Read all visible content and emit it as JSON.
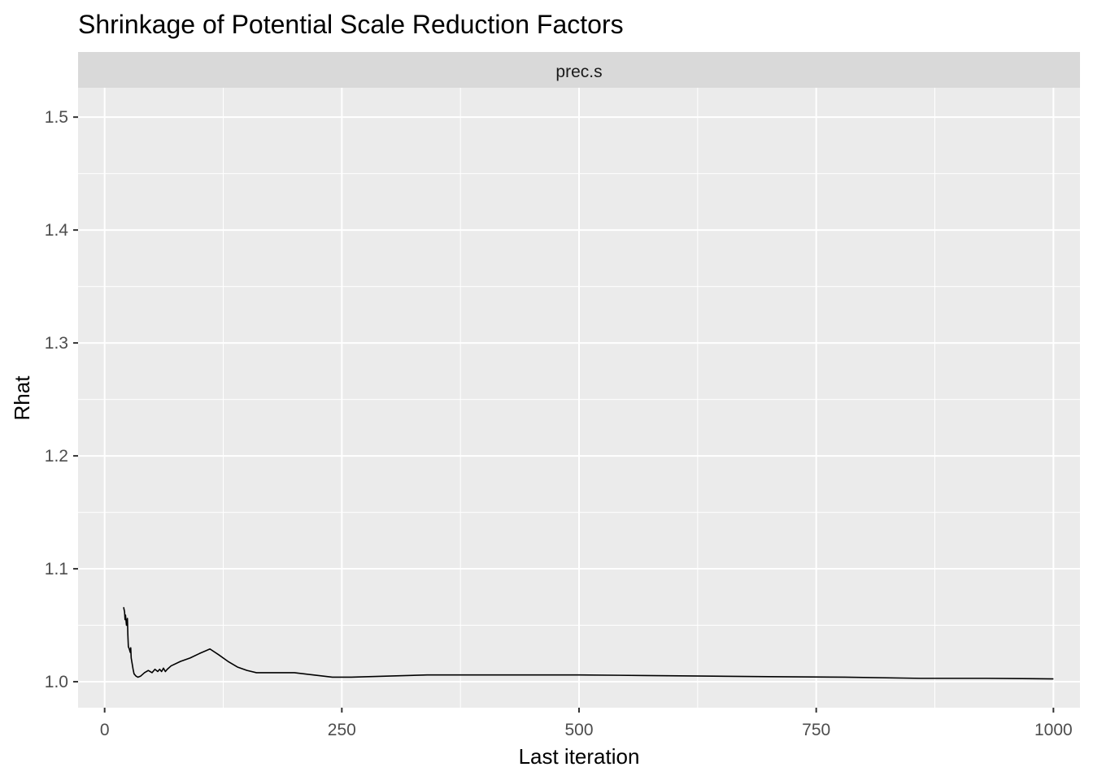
{
  "chart_data": {
    "type": "line",
    "title": "Shrinkage of Potential Scale Reduction Factors",
    "facet_label": "prec.s",
    "xlabel": "Last iteration",
    "ylabel": "Rhat",
    "xlim": [
      -28,
      1028
    ],
    "ylim": [
      0.977,
      1.526
    ],
    "x_ticks": [
      0,
      250,
      500,
      750,
      1000
    ],
    "x_tick_labels": [
      "0",
      "250",
      "500",
      "750",
      "1000"
    ],
    "y_ticks": [
      1.0,
      1.1,
      1.2,
      1.3,
      1.4,
      1.5
    ],
    "y_tick_labels": [
      "1.0",
      "1.1",
      "1.2",
      "1.3",
      "1.4",
      "1.5"
    ],
    "grid": true,
    "series": [
      {
        "color": "#000000",
        "x": [
          20,
          21,
          21.5,
          22,
          23,
          24,
          24.5,
          25,
          26,
          27,
          27.5,
          28,
          29,
          30,
          31,
          33,
          35,
          38,
          42,
          46,
          50,
          53,
          56,
          58,
          60,
          62,
          64,
          66,
          70,
          80,
          90,
          100,
          111,
          120,
          130,
          140,
          150,
          160,
          170,
          180,
          200,
          220,
          240,
          260,
          300,
          340,
          400,
          450,
          500,
          570,
          630,
          700,
          780,
          860,
          930,
          1000
        ],
        "values": [
          1.066,
          1.062,
          1.055,
          1.059,
          1.05,
          1.056,
          1.041,
          1.031,
          1.029,
          1.026,
          1.03,
          1.021,
          1.016,
          1.011,
          1.007,
          1.005,
          1.004,
          1.005,
          1.008,
          1.01,
          1.008,
          1.011,
          1.009,
          1.011,
          1.009,
          1.012,
          1.009,
          1.011,
          1.014,
          1.018,
          1.021,
          1.025,
          1.029,
          1.024,
          1.018,
          1.013,
          1.01,
          1.008,
          1.008,
          1.008,
          1.008,
          1.006,
          1.004,
          1.004,
          1.005,
          1.006,
          1.006,
          1.006,
          1.006,
          1.0055,
          1.005,
          1.0045,
          1.004,
          1.003,
          1.003,
          1.0025
        ]
      }
    ]
  }
}
